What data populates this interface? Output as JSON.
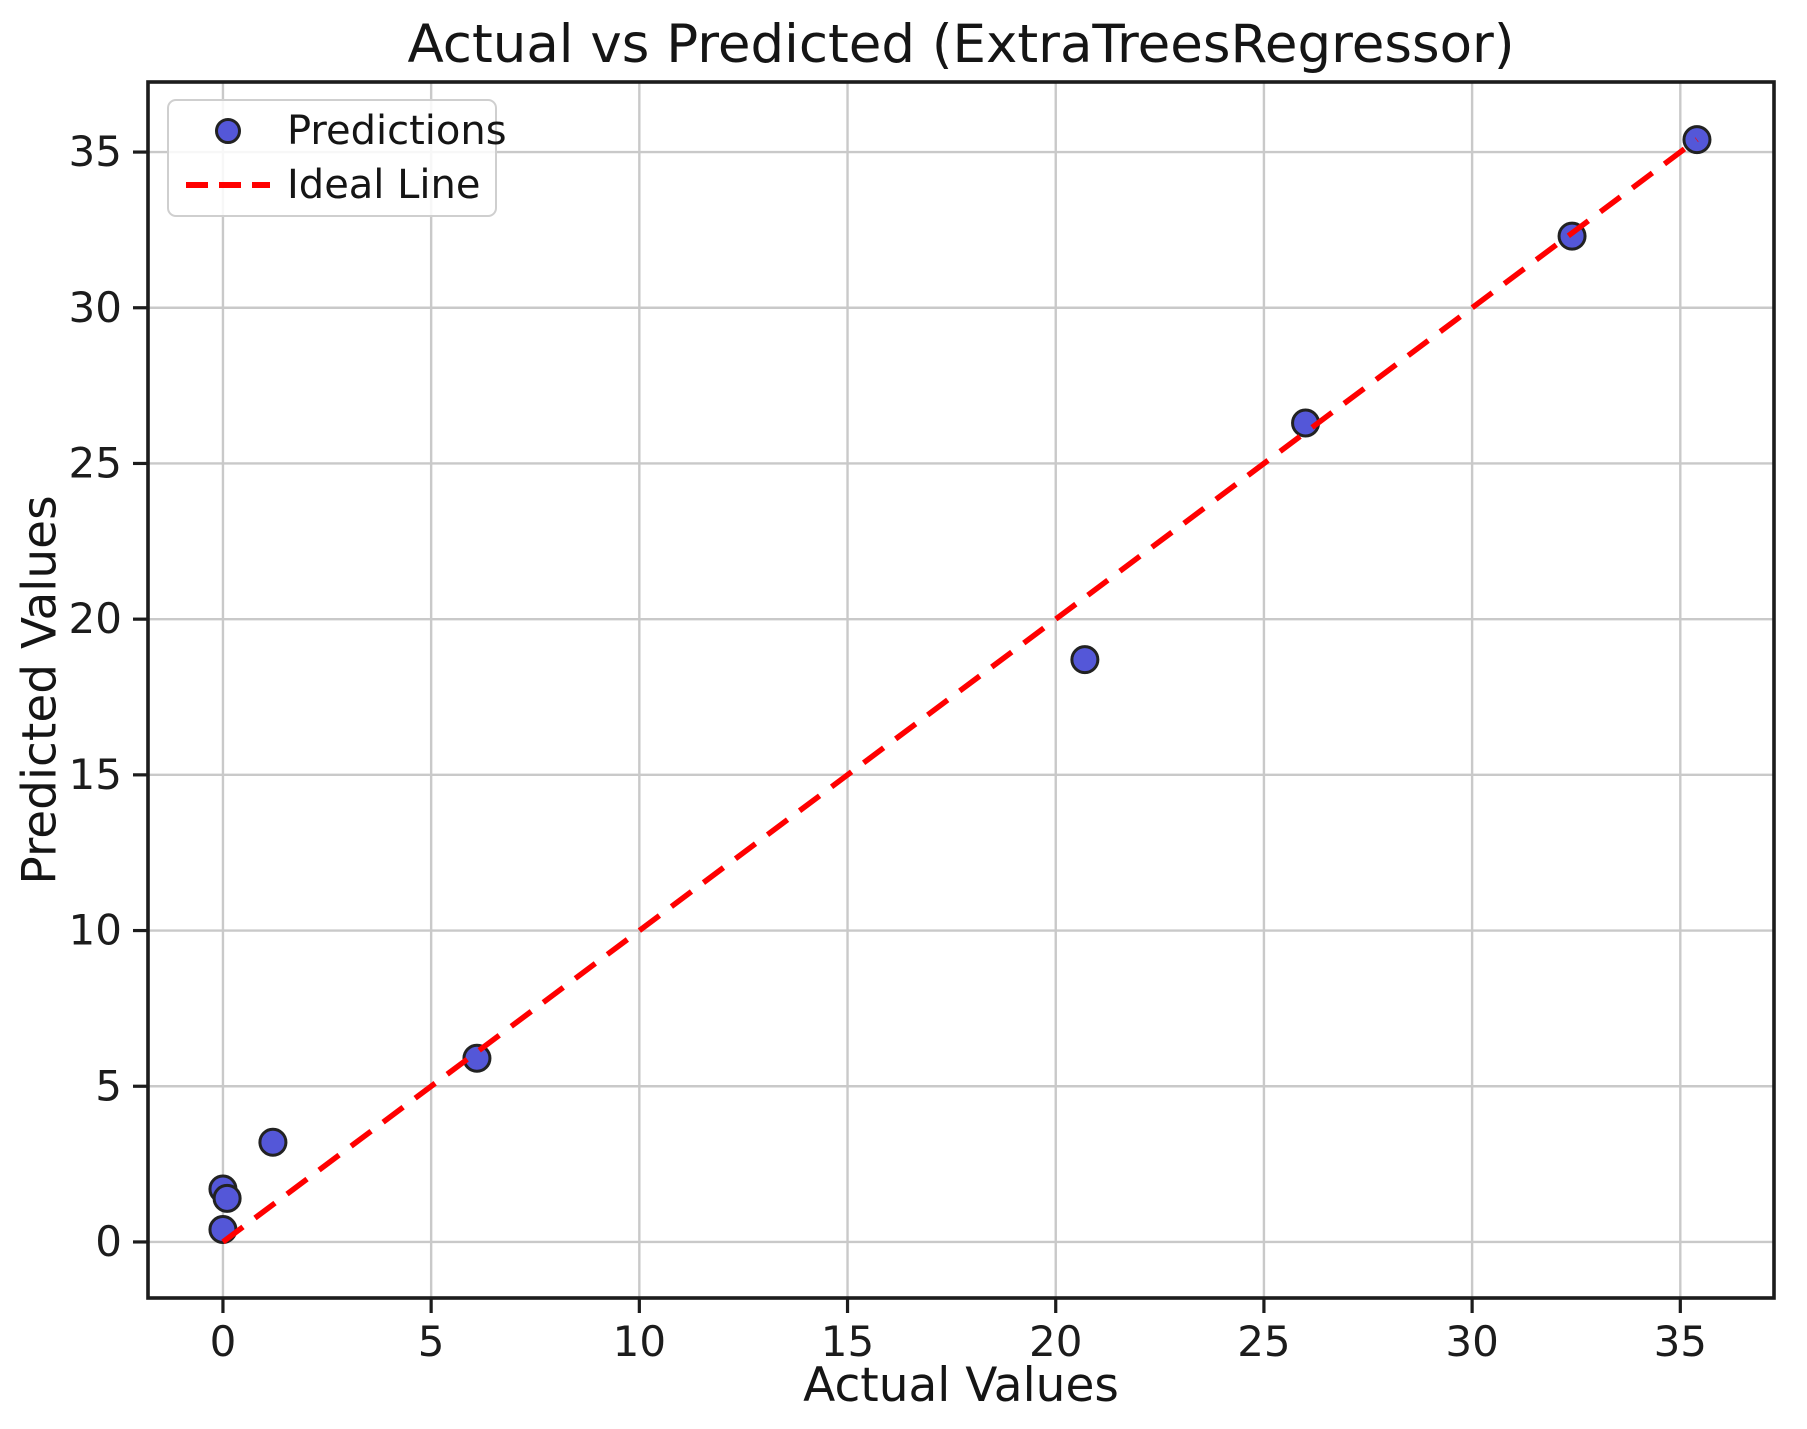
{
  "chart_data": {
    "type": "scatter",
    "title": "Actual vs Predicted (ExtraTreesRegressor)",
    "xlabel": "Actual Values",
    "ylabel": "Predicted Values",
    "xlim": [
      -1.8,
      37.25
    ],
    "ylim": [
      -1.8,
      37.25
    ],
    "x_ticks": [
      0,
      5,
      10,
      15,
      20,
      25,
      30,
      35
    ],
    "y_ticks": [
      0,
      5,
      10,
      15,
      20,
      25,
      30,
      35
    ],
    "grid": true,
    "legend": {
      "position": "upper-left",
      "entries": [
        {
          "label": "Predictions",
          "swatch": "circle-marker-icon"
        },
        {
          "label": "Ideal Line",
          "swatch": "red-dashed-line-icon"
        }
      ]
    },
    "series": [
      {
        "name": "Predictions",
        "type": "scatter",
        "points": [
          {
            "x": 0.0,
            "y": 0.4
          },
          {
            "x": 0.0,
            "y": 1.7
          },
          {
            "x": 0.1,
            "y": 1.4
          },
          {
            "x": 1.2,
            "y": 3.2
          },
          {
            "x": 6.1,
            "y": 5.9
          },
          {
            "x": 20.7,
            "y": 18.7
          },
          {
            "x": 26.0,
            "y": 26.3
          },
          {
            "x": 32.4,
            "y": 32.3
          },
          {
            "x": 35.4,
            "y": 35.4
          }
        ]
      },
      {
        "name": "Ideal Line",
        "type": "line",
        "points": [
          {
            "x": 0,
            "y": 0
          },
          {
            "x": 35.4,
            "y": 35.4
          }
        ]
      }
    ],
    "style": {
      "marker_fill": "#5457d8",
      "marker_edge": "#222222",
      "line_color": "#ff0000",
      "grid_color": "#c9c9c9",
      "spine_color": "#1c1c1c",
      "text_color": "#151515",
      "background": "#ffffff"
    }
  }
}
